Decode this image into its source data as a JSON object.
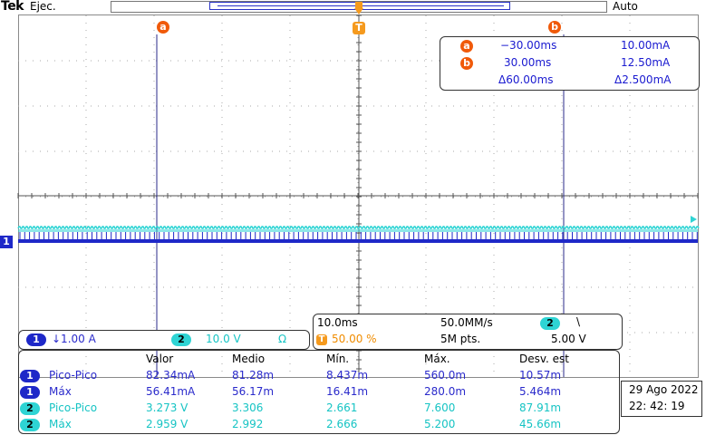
{
  "header": {
    "brand": "Tek",
    "mode": "Ejec.",
    "trigger_state": "Auto"
  },
  "markers": {
    "cursor_a": "a",
    "cursor_b": "b",
    "trigger": "T",
    "channel1": "1"
  },
  "cursor_readout": {
    "row_a": {
      "badge": "a",
      "time": "−30.00ms",
      "value": "10.00mA"
    },
    "row_b": {
      "badge": "b",
      "time": "30.00ms",
      "value": "12.50mA"
    },
    "delta": {
      "time": "Δ60.00ms",
      "value": "Δ2.500mA"
    }
  },
  "channels": {
    "ch1": {
      "badge": "1",
      "scale": "↓1.00 A"
    },
    "ch2": {
      "badge": "2",
      "scale": "10.0 V",
      "impedance": "Ω"
    }
  },
  "timebase": {
    "time_div": "10.0ms",
    "sample_rate": "50.0MM/s",
    "trigger_source": "2",
    "slope": "\\",
    "trigger_pos": "50.00 %",
    "record_length": "5M pts.",
    "trigger_level": "5.00 V"
  },
  "measurements": {
    "headers": [
      "Valor",
      "Medio",
      "Mín.",
      "Máx.",
      "Desv. est"
    ],
    "rows": [
      {
        "ch": "1",
        "name": "Pico-Pico",
        "values": [
          "82.34mA",
          "81.28m",
          "8.437m",
          "560.0m",
          "10.57m"
        ]
      },
      {
        "ch": "1",
        "name": "Máx",
        "values": [
          "56.41mA",
          "56.17m",
          "16.41m",
          "280.0m",
          "5.464m"
        ]
      },
      {
        "ch": "2",
        "name": "Pico-Pico",
        "values": [
          "3.273 V",
          "3.306",
          "2.661",
          "7.600",
          "87.91m"
        ]
      },
      {
        "ch": "2",
        "name": "Máx",
        "values": [
          "2.959 V",
          "2.992",
          "2.666",
          "5.200",
          "45.66m"
        ]
      }
    ]
  },
  "datetime": {
    "date_day": "29 Ago",
    "date_year": "2022",
    "time": "22: 42: 19"
  },
  "colors": {
    "ch1": "#1e28c8",
    "ch2": "#2ed4d4",
    "cursor": "#f05a0a",
    "trigger": "#f59a1e"
  }
}
